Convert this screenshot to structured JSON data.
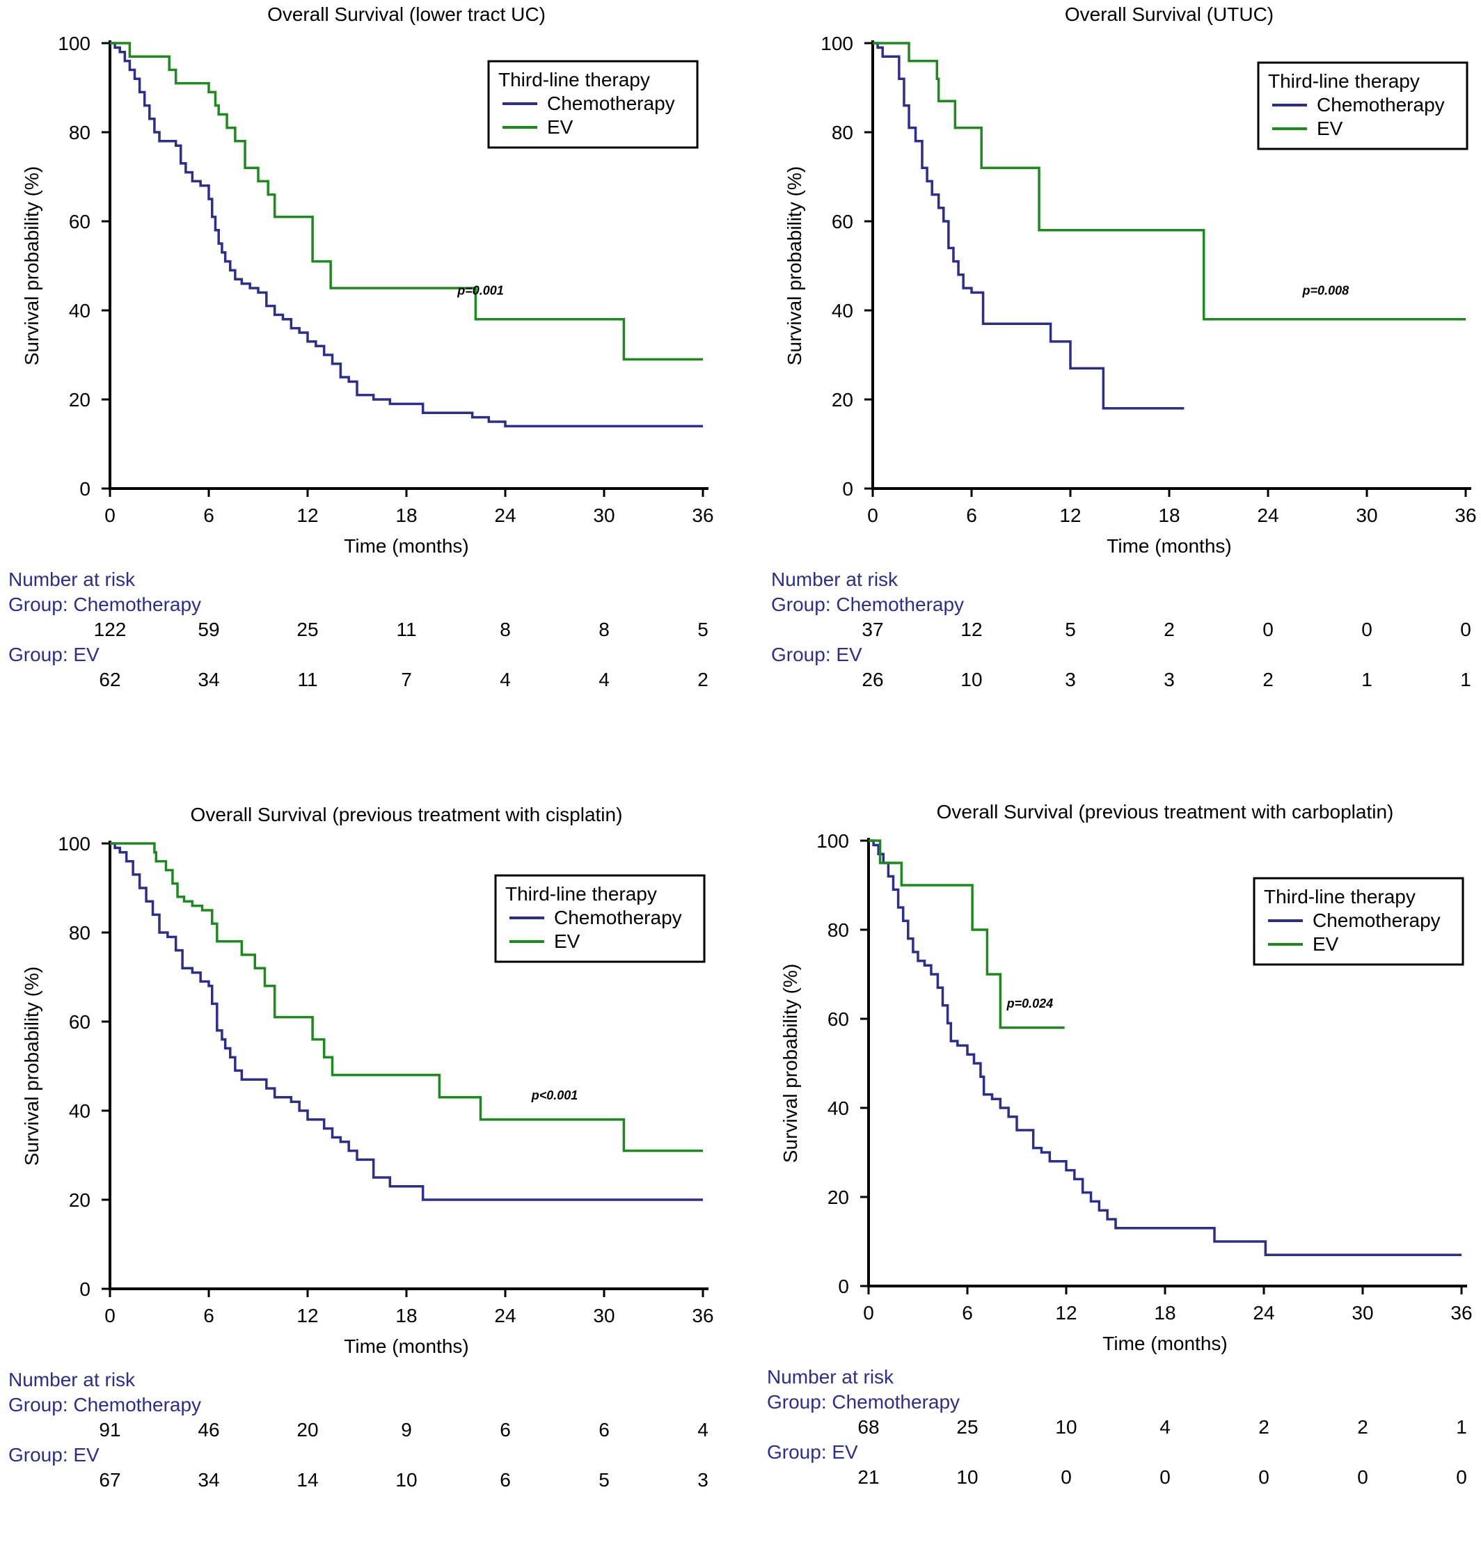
{
  "colors": {
    "chemo": "#2b2e8c",
    "ev": "#1d8a1d",
    "risk_heading": "#2b2e8c",
    "axis": "#000000"
  },
  "chart_data": [
    {
      "type": "line",
      "title": "Overall Survival (lower tract UC)",
      "xlabel": "Time (months)",
      "ylabel": "Survival probability (%)",
      "xlim": [
        0,
        36
      ],
      "ylim": [
        0,
        100
      ],
      "xticks": [
        "0",
        "6",
        "12",
        "18",
        "24",
        "30",
        "36"
      ],
      "yticks": [
        "0",
        "20",
        "40",
        "60",
        "80",
        "100"
      ],
      "legend": {
        "title": "Third-line therapy",
        "position": "top-right"
      },
      "p_value": "p=0.001",
      "series": [
        {
          "name": "Chemotherapy",
          "color": "#2b2e8c",
          "x": [
            0,
            0.3,
            0.6,
            0.9,
            1.2,
            1.5,
            1.8,
            2.1,
            2.4,
            2.7,
            3.0,
            3.5,
            4.0,
            4.3,
            4.6,
            5.0,
            5.5,
            5.8,
            6.0,
            6.2,
            6.4,
            6.6,
            6.8,
            7.0,
            7.3,
            7.6,
            8.0,
            8.5,
            9.0,
            9.5,
            10,
            10.5,
            11,
            11.5,
            12,
            12.5,
            13,
            13.5,
            14,
            14.5,
            15,
            16,
            17,
            18,
            19,
            20,
            22,
            23,
            24,
            36
          ],
          "y": [
            100,
            99,
            98,
            96,
            94,
            92,
            89,
            86,
            83,
            80,
            78,
            78,
            77,
            73,
            71,
            69,
            68,
            68,
            65,
            61,
            58,
            55,
            53,
            51,
            49,
            47,
            46,
            45,
            44,
            41,
            39,
            38,
            36,
            35,
            33,
            32,
            30,
            28,
            25,
            24,
            21,
            20,
            19,
            19,
            17,
            17,
            16,
            15,
            14,
            14
          ]
        },
        {
          "name": "EV",
          "color": "#1d8a1d",
          "x": [
            0,
            0.8,
            1.2,
            2.7,
            3.6,
            4.0,
            6.0,
            6.4,
            6.6,
            7.1,
            7.6,
            8.2,
            9.0,
            9.6,
            10,
            12,
            12.3,
            13.4,
            14,
            22,
            22.2,
            31,
            31.2,
            36
          ],
          "y": [
            100,
            100,
            97,
            97,
            94,
            91,
            89,
            86,
            84,
            81,
            78,
            72,
            69,
            66,
            61,
            61,
            51,
            45,
            45,
            45,
            38,
            38,
            29,
            29
          ]
        }
      ],
      "risk_table": {
        "heading": "Number at risk",
        "groups": [
          {
            "label": "Group: Chemotherapy",
            "values": [
              "122",
              "59",
              "25",
              "11",
              "8",
              "8",
              "5"
            ]
          },
          {
            "label": "Group: EV",
            "values": [
              "62",
              "34",
              "11",
              "7",
              "4",
              "4",
              "2"
            ]
          }
        ]
      }
    },
    {
      "type": "line",
      "title": "Overall Survival (UTUC)",
      "xlabel": "Time (months)",
      "ylabel": "Survival probability (%)",
      "xlim": [
        0,
        36
      ],
      "ylim": [
        0,
        100
      ],
      "xticks": [
        "0",
        "6",
        "12",
        "18",
        "24",
        "30",
        "36"
      ],
      "yticks": [
        "0",
        "20",
        "40",
        "60",
        "80",
        "100"
      ],
      "legend": {
        "title": "Third-line therapy",
        "position": "top-right"
      },
      "p_value": "p=0.008",
      "series": [
        {
          "name": "Chemotherapy",
          "color": "#2b2e8c",
          "x": [
            0,
            0.3,
            0.6,
            1.2,
            1.6,
            1.9,
            2.2,
            2.6,
            3.0,
            3.3,
            3.6,
            4.0,
            4.3,
            4.6,
            4.9,
            5.2,
            5.5,
            6.0,
            6.7,
            7.0,
            10.5,
            10.8,
            12.0,
            13.9,
            14.0,
            18.9
          ],
          "y": [
            100,
            99,
            97,
            97,
            92,
            86,
            81,
            78,
            72,
            69,
            66,
            63,
            60,
            54,
            51,
            48,
            45,
            44,
            37,
            37,
            37,
            33,
            27,
            27,
            18,
            18
          ]
        },
        {
          "name": "EV",
          "color": "#1d8a1d",
          "x": [
            0,
            2.1,
            2.2,
            3.4,
            3.9,
            4.0,
            4.9,
            5.0,
            6.5,
            6.6,
            10.0,
            10.1,
            20.0,
            20.1,
            36
          ],
          "y": [
            100,
            100,
            96,
            96,
            92,
            87,
            87,
            81,
            81,
            72,
            72,
            58,
            58,
            38,
            38
          ]
        }
      ],
      "risk_table": {
        "heading": "Number at risk",
        "groups": [
          {
            "label": "Group: Chemotherapy",
            "values": [
              "37",
              "12",
              "5",
              "2",
              "0",
              "0",
              "0"
            ]
          },
          {
            "label": "Group: EV",
            "values": [
              "26",
              "10",
              "3",
              "3",
              "2",
              "1",
              "1"
            ]
          }
        ]
      }
    },
    {
      "type": "line",
      "title": "Overall Survival (previous treatment with cisplatin)",
      "xlabel": "Time (months)",
      "ylabel": "Survival probability (%)",
      "xlim": [
        0,
        36
      ],
      "ylim": [
        0,
        100
      ],
      "xticks": [
        "0",
        "6",
        "12",
        "18",
        "24",
        "30",
        "36"
      ],
      "yticks": [
        "0",
        "20",
        "40",
        "60",
        "80",
        "100"
      ],
      "legend": {
        "title": "Third-line therapy",
        "position": "top-right"
      },
      "p_value": "p<0.001",
      "series": [
        {
          "name": "Chemotherapy",
          "color": "#2b2e8c",
          "x": [
            0,
            0.3,
            0.6,
            1.0,
            1.4,
            1.8,
            2.2,
            2.6,
            3.0,
            3.5,
            4.0,
            4.4,
            5.0,
            5.5,
            6.0,
            6.2,
            6.5,
            6.8,
            7.0,
            7.3,
            7.6,
            8.0,
            8.5,
            9.0,
            9.5,
            10,
            11,
            11.5,
            12,
            13,
            13.5,
            14,
            14.5,
            15,
            16,
            16.5,
            17,
            18,
            19,
            36
          ],
          "y": [
            100,
            99,
            98,
            96,
            93,
            90,
            87,
            84,
            80,
            79,
            76,
            72,
            71,
            69,
            68,
            64,
            58,
            56,
            54,
            52,
            49,
            47,
            47,
            47,
            45,
            43,
            42,
            40,
            38,
            36,
            34,
            33,
            31,
            29,
            25,
            25,
            23,
            23,
            20,
            20
          ]
        },
        {
          "name": "EV",
          "color": "#1d8a1d",
          "x": [
            0,
            1.2,
            2.7,
            2.8,
            3.4,
            3.8,
            4.1,
            4.5,
            5.0,
            5.6,
            6.2,
            6.5,
            7.1,
            8.0,
            8.8,
            9.4,
            10,
            12,
            12.3,
            13,
            13.5,
            19.8,
            20,
            22.2,
            22.5,
            31,
            31.2,
            36
          ],
          "y": [
            100,
            100,
            98,
            96,
            94,
            91,
            88,
            87,
            86,
            85,
            82,
            78,
            78,
            75,
            72,
            68,
            61,
            61,
            56,
            52,
            48,
            48,
            43,
            43,
            38,
            38,
            31,
            31
          ]
        }
      ],
      "risk_table": {
        "heading": "Number at risk",
        "groups": [
          {
            "label": "Group: Chemotherapy",
            "values": [
              "91",
              "46",
              "20",
              "9",
              "6",
              "6",
              "4"
            ]
          },
          {
            "label": "Group: EV",
            "values": [
              "67",
              "34",
              "14",
              "10",
              "6",
              "5",
              "3"
            ]
          }
        ]
      }
    },
    {
      "type": "line",
      "title": "Overall Survival (previous treatment with carboplatin)",
      "xlabel": "Time (months)",
      "ylabel": "Survival probability (%)",
      "xlim": [
        0,
        36
      ],
      "ylim": [
        0,
        100
      ],
      "xticks": [
        "0",
        "6",
        "12",
        "18",
        "24",
        "30",
        "36"
      ],
      "yticks": [
        "0",
        "20",
        "40",
        "60",
        "80",
        "100"
      ],
      "legend": {
        "title": "Third-line therapy",
        "position": "top-right"
      },
      "p_value": "p=0.024",
      "series": [
        {
          "name": "Chemotherapy",
          "color": "#2b2e8c",
          "x": [
            0,
            0.3,
            0.6,
            0.9,
            1.2,
            1.5,
            1.8,
            2.1,
            2.4,
            2.7,
            3.0,
            3.4,
            3.8,
            4.2,
            4.5,
            4.8,
            5.0,
            5.4,
            6.0,
            6.4,
            6.8,
            7.0,
            7.5,
            8.0,
            8.5,
            9.0,
            10,
            10.5,
            11,
            12,
            12.5,
            13,
            13.5,
            14,
            14.5,
            15,
            16,
            20.5,
            21,
            24,
            24.1,
            36
          ],
          "y": [
            100,
            99,
            97,
            95,
            92,
            89,
            85,
            82,
            78,
            75,
            73,
            72,
            70,
            67,
            63,
            59,
            55,
            54,
            52,
            50,
            47,
            43,
            42,
            40,
            38,
            35,
            31,
            30,
            28,
            26,
            24,
            21,
            19,
            17,
            15,
            13,
            13,
            13,
            10,
            10,
            7,
            7
          ]
        },
        {
          "name": "EV",
          "color": "#1d8a1d",
          "x": [
            0,
            0.6,
            0.7,
            1.9,
            2.0,
            6.2,
            6.3,
            7.1,
            7.2,
            7.9,
            8.0,
            11.9
          ],
          "y": [
            100,
            100,
            95,
            95,
            90,
            90,
            80,
            80,
            70,
            70,
            58,
            58
          ]
        }
      ],
      "risk_table": {
        "heading": "Number at risk",
        "groups": [
          {
            "label": "Group: Chemotherapy",
            "values": [
              "68",
              "25",
              "10",
              "4",
              "2",
              "2",
              "1"
            ]
          },
          {
            "label": "Group: EV",
            "values": [
              "21",
              "10",
              "0",
              "0",
              "0",
              "0",
              "0"
            ]
          }
        ]
      }
    }
  ]
}
